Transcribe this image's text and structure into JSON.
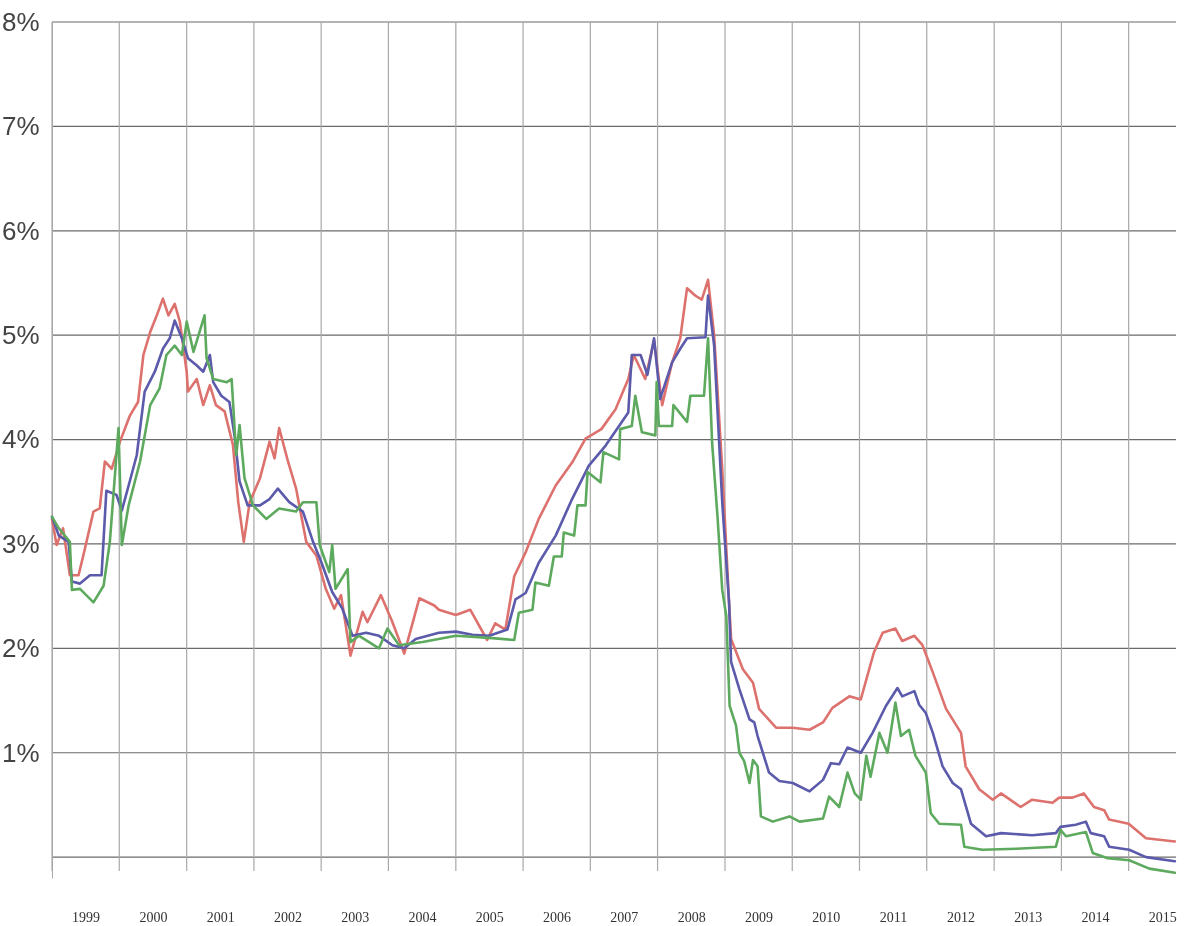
{
  "chart_data": {
    "type": "line",
    "xlim": [
      "1999-01-01",
      "2015-09-15"
    ],
    "ylim": [
      -0.2,
      8
    ],
    "xticks": [
      {
        "value": "1999-01-01",
        "label": null
      },
      {
        "value": "1999-07-02",
        "label": "1999"
      },
      {
        "value": "2000-01-01",
        "label": null
      },
      {
        "value": "2000-07-02",
        "label": "2000"
      },
      {
        "value": "2001-01-01",
        "label": null
      },
      {
        "value": "2001-07-02",
        "label": "2001"
      },
      {
        "value": "2002-01-01",
        "label": null
      },
      {
        "value": "2002-07-02",
        "label": "2002"
      },
      {
        "value": "2003-01-01",
        "label": null
      },
      {
        "value": "2003-07-02",
        "label": "2003"
      },
      {
        "value": "2004-01-01",
        "label": null
      },
      {
        "value": "2004-07-02",
        "label": "2004"
      },
      {
        "value": "2005-01-01",
        "label": null
      },
      {
        "value": "2005-07-02",
        "label": "2005"
      },
      {
        "value": "2006-01-01",
        "label": null
      },
      {
        "value": "2006-07-02",
        "label": "2006"
      },
      {
        "value": "2007-01-01",
        "label": null
      },
      {
        "value": "2007-07-02",
        "label": "2007"
      },
      {
        "value": "2008-01-01",
        "label": null
      },
      {
        "value": "2008-07-02",
        "label": "2008"
      },
      {
        "value": "2009-01-01",
        "label": null
      },
      {
        "value": "2009-07-02",
        "label": "2009"
      },
      {
        "value": "2010-01-01",
        "label": null
      },
      {
        "value": "2010-07-02",
        "label": "2010"
      },
      {
        "value": "2011-01-01",
        "label": null
      },
      {
        "value": "2011-07-02",
        "label": "2011"
      },
      {
        "value": "2012-01-01",
        "label": null
      },
      {
        "value": "2012-07-02",
        "label": "2012"
      },
      {
        "value": "2013-01-01",
        "label": null
      },
      {
        "value": "2013-07-02",
        "label": "2013"
      },
      {
        "value": "2014-01-01",
        "label": null
      },
      {
        "value": "2014-07-02",
        "label": "2014"
      },
      {
        "value": "2015-01-01",
        "label": null
      },
      {
        "value": "2015-07-02",
        "label": "2015"
      }
    ],
    "yticks": [
      {
        "value": 0,
        "label": null
      },
      {
        "value": 1,
        "label": "1%"
      },
      {
        "value": 2,
        "label": "2%"
      },
      {
        "value": 3,
        "label": "3%"
      },
      {
        "value": 4,
        "label": "4%"
      },
      {
        "value": 5,
        "label": "5%"
      },
      {
        "value": 6,
        "label": "6%"
      },
      {
        "value": 7,
        "label": "7%"
      },
      {
        "value": 8,
        "label": "8%"
      }
    ],
    "grid": true,
    "series": [
      {
        "color": "#dd716d",
        "x": [
          "1999-01-01",
          "1999-01-26",
          "1999-03-02",
          "1999-04-08",
          "1999-05-25",
          "1999-06-20",
          "1999-08-14",
          "1999-09-17",
          "1999-10-15",
          "1999-11-21",
          "2000-01-05",
          "2000-02-28",
          "2000-04-12",
          "2000-05-11",
          "2000-06-17",
          "2000-07-23",
          "2000-08-25",
          "2000-09-24",
          "2000-10-28",
          "2000-11-25",
          "2001-01-01",
          "2001-01-08",
          "2001-02-25",
          "2001-04-01",
          "2001-05-07",
          "2001-06-09",
          "2001-07-26",
          "2001-09-09",
          "2001-10-08",
          "2001-11-07",
          "2001-12-09",
          "2002-02-03",
          "2002-03-27",
          "2002-04-23",
          "2002-05-18",
          "2002-07-05",
          "2002-08-18",
          "2002-10-12",
          "2002-12-06",
          "2003-01-26",
          "2003-03-13",
          "2003-04-19",
          "2003-06-09",
          "2003-08-14",
          "2003-09-09",
          "2003-11-21",
          "2004-01-23",
          "2004-03-27",
          "2004-06-17",
          "2004-09-06",
          "2004-10-01",
          "2005-01-01",
          "2005-03-20",
          "2005-06-20",
          "2005-08-03",
          "2005-09-27",
          "2005-11-14",
          "2006-01-15",
          "2006-03-27",
          "2006-06-27",
          "2006-09-24",
          "2006-12-06",
          "2007-03-02",
          "2007-05-18",
          "2007-07-26",
          "2007-08-25",
          "2007-10-26",
          "2007-12-13",
          "2008-01-26",
          "2008-03-20",
          "2008-05-03",
          "2008-06-09",
          "2008-07-23",
          "2008-08-28",
          "2008-10-01",
          "2008-11-03",
          "2008-12-17",
          "2009-01-23",
          "2009-02-03",
          "2009-04-08",
          "2009-06-02",
          "2009-07-05",
          "2009-10-05",
          "2010-01-04",
          "2010-04-05",
          "2010-06-17",
          "2010-08-07",
          "2010-11-07",
          "2011-01-08",
          "2011-03-20",
          "2011-05-07",
          "2011-07-15",
          "2011-08-21",
          "2011-10-26",
          "2011-12-09",
          "2012-02-03",
          "2012-04-15",
          "2012-07-05",
          "2012-07-30",
          "2012-10-12",
          "2012-12-24",
          "2013-02-07",
          "2013-05-25",
          "2013-07-26",
          "2013-11-14",
          "2013-12-20",
          "2014-03-02",
          "2014-05-03",
          "2014-06-27",
          "2014-08-21",
          "2014-09-17",
          "2015-01-01",
          "2015-04-05",
          "2015-09-09"
        ],
        "values": [
          3.24,
          2.99,
          3.15,
          2.7,
          2.7,
          2.89,
          3.31,
          3.34,
          3.79,
          3.72,
          3.98,
          4.23,
          4.36,
          4.81,
          5.03,
          5.19,
          5.35,
          5.19,
          5.3,
          5.13,
          4.65,
          4.46,
          4.58,
          4.33,
          4.52,
          4.33,
          4.27,
          3.95,
          3.4,
          3.02,
          3.4,
          3.63,
          3.98,
          3.82,
          4.11,
          3.79,
          3.53,
          3.02,
          2.89,
          2.57,
          2.38,
          2.51,
          1.93,
          2.35,
          2.25,
          2.51,
          2.25,
          1.95,
          2.48,
          2.41,
          2.37,
          2.32,
          2.37,
          2.08,
          2.24,
          2.18,
          2.69,
          2.92,
          3.24,
          3.56,
          3.78,
          4.01,
          4.1,
          4.29,
          4.58,
          4.81,
          4.58,
          4.95,
          4.33,
          4.74,
          4.97,
          5.45,
          5.38,
          5.34,
          5.53,
          5.0,
          3.72,
          2.44,
          2.09,
          1.8,
          1.67,
          1.42,
          1.24,
          1.24,
          1.22,
          1.29,
          1.43,
          1.54,
          1.51,
          1.96,
          2.15,
          2.19,
          2.07,
          2.12,
          2.03,
          1.77,
          1.42,
          1.19,
          0.87,
          0.65,
          0.55,
          0.61,
          0.48,
          0.55,
          0.52,
          0.57,
          0.57,
          0.61,
          0.48,
          0.45,
          0.36,
          0.32,
          0.18,
          0.15
        ]
      },
      {
        "color": "#5b5aab",
        "x": [
          "1999-01-01",
          "1999-02-07",
          "1999-04-01",
          "1999-04-19",
          "1999-06-02",
          "1999-07-26",
          "1999-09-27",
          "1999-10-23",
          "1999-12-17",
          "2000-01-15",
          "2000-02-21",
          "2000-04-05",
          "2000-05-18",
          "2000-07-12",
          "2000-08-25",
          "2000-10-01",
          "2000-10-28",
          "2000-12-06",
          "2001-01-08",
          "2001-02-25",
          "2001-04-01",
          "2001-05-07",
          "2001-05-25",
          "2001-07-08",
          "2001-08-21",
          "2001-09-20",
          "2001-10-15",
          "2001-11-28",
          "2002-02-03",
          "2002-03-27",
          "2002-05-11",
          "2002-07-12",
          "2002-09-24",
          "2002-11-18",
          "2003-01-01",
          "2003-03-02",
          "2003-04-26",
          "2003-06-20",
          "2003-09-02",
          "2003-11-11",
          "2004-01-23",
          "2004-03-27",
          "2004-05-28",
          "2004-10-01",
          "2005-01-01",
          "2005-04-01",
          "2005-07-01",
          "2005-10-08",
          "2005-11-21",
          "2006-01-15",
          "2006-03-27",
          "2006-06-27",
          "2006-09-24",
          "2006-12-24",
          "2007-03-24",
          "2007-06-06",
          "2007-07-26",
          "2007-08-14",
          "2007-10-01",
          "2007-11-07",
          "2007-12-13",
          "2008-01-15",
          "2008-03-20",
          "2008-05-03",
          "2008-06-09",
          "2008-09-17",
          "2008-10-01",
          "2008-11-03",
          "2008-12-17",
          "2009-01-23",
          "2009-02-03",
          "2009-03-20",
          "2009-05-14",
          "2009-06-09",
          "2009-06-27",
          "2009-08-28",
          "2009-10-23",
          "2010-01-04",
          "2010-04-05",
          "2010-06-17",
          "2010-07-30",
          "2010-09-13",
          "2010-10-28",
          "2011-01-08",
          "2011-03-13",
          "2011-05-25",
          "2011-07-26",
          "2011-08-21",
          "2011-10-26",
          "2011-11-21",
          "2011-12-27",
          "2012-02-03",
          "2012-03-27",
          "2012-05-21",
          "2012-07-05",
          "2012-08-28",
          "2012-11-18",
          "2013-02-07",
          "2013-07-26",
          "2013-12-02",
          "2013-12-27",
          "2014-03-20",
          "2014-05-14",
          "2014-06-09",
          "2014-08-21",
          "2014-09-17",
          "2015-01-04",
          "2015-04-05",
          "2015-09-09"
        ],
        "values": [
          3.26,
          3.08,
          3.02,
          2.64,
          2.62,
          2.7,
          2.7,
          3.51,
          3.47,
          3.32,
          3.56,
          3.85,
          4.46,
          4.65,
          4.87,
          4.97,
          5.14,
          4.97,
          4.78,
          4.71,
          4.65,
          4.81,
          4.55,
          4.42,
          4.36,
          4.01,
          3.6,
          3.37,
          3.37,
          3.43,
          3.53,
          3.4,
          3.31,
          3.02,
          2.83,
          2.54,
          2.38,
          2.12,
          2.15,
          2.12,
          2.03,
          2.0,
          2.09,
          2.15,
          2.16,
          2.13,
          2.12,
          2.18,
          2.47,
          2.53,
          2.82,
          3.08,
          3.43,
          3.75,
          3.94,
          4.13,
          4.26,
          4.81,
          4.81,
          4.62,
          4.97,
          4.39,
          4.74,
          4.87,
          4.97,
          4.98,
          5.38,
          4.9,
          3.4,
          2.44,
          1.87,
          1.61,
          1.32,
          1.29,
          1.16,
          0.81,
          0.73,
          0.71,
          0.63,
          0.74,
          0.9,
          0.89,
          1.05,
          1.0,
          1.19,
          1.45,
          1.62,
          1.54,
          1.59,
          1.46,
          1.38,
          1.19,
          0.87,
          0.71,
          0.65,
          0.32,
          0.2,
          0.23,
          0.21,
          0.23,
          0.29,
          0.31,
          0.34,
          0.23,
          0.2,
          0.1,
          0.07,
          0.0,
          -0.04
        ]
      },
      {
        "color": "#5daa5e",
        "x": [
          "1999-01-01",
          "1999-02-07",
          "1999-04-08",
          "1999-04-19",
          "1999-06-02",
          "1999-08-14",
          "1999-10-08",
          "1999-11-11",
          "1999-12-28",
          "2000-01-15",
          "2000-02-21",
          "2000-04-23",
          "2000-06-17",
          "2000-08-07",
          "2000-09-13",
          "2000-10-28",
          "2000-12-06",
          "2001-01-01",
          "2001-02-07",
          "2001-04-08",
          "2001-04-19",
          "2001-05-25",
          "2001-08-07",
          "2001-09-02",
          "2001-09-27",
          "2001-10-15",
          "2001-11-11",
          "2001-12-27",
          "2002-03-09",
          "2002-05-18",
          "2002-08-18",
          "2002-09-24",
          "2002-12-06",
          "2002-12-24",
          "2003-02-14",
          "2003-03-02",
          "2003-03-20",
          "2003-05-25",
          "2003-06-09",
          "2003-07-26",
          "2003-11-11",
          "2003-12-27",
          "2004-02-28",
          "2004-07-05",
          "2005-01-01",
          "2005-07-01",
          "2005-11-14",
          "2005-12-09",
          "2006-02-21",
          "2006-03-09",
          "2006-05-21",
          "2006-06-17",
          "2006-07-30",
          "2006-08-10",
          "2006-10-05",
          "2006-10-23",
          "2006-12-06",
          "2006-12-17",
          "2007-02-25",
          "2007-03-13",
          "2007-06-06",
          "2007-06-12",
          "2007-08-14",
          "2007-09-02",
          "2007-10-08",
          "2007-12-20",
          "2007-12-27",
          "2008-01-08",
          "2008-03-20",
          "2008-03-27",
          "2008-06-09",
          "2008-06-27",
          "2008-09-09",
          "2008-10-01",
          "2008-10-23",
          "2008-11-21",
          "2008-12-17",
          "2009-01-08",
          "2009-01-26",
          "2009-03-02",
          "2009-03-20",
          "2009-04-15",
          "2009-05-14",
          "2009-06-02",
          "2009-06-27",
          "2009-07-15",
          "2009-09-17",
          "2009-12-17",
          "2010-02-10",
          "2010-06-17",
          "2010-07-20",
          "2010-09-13",
          "2010-10-28",
          "2010-12-06",
          "2011-01-08",
          "2011-02-07",
          "2011-03-02",
          "2011-04-19",
          "2011-06-02",
          "2011-07-15",
          "2011-08-14",
          "2011-09-27",
          "2011-11-01",
          "2011-12-27",
          "2012-01-23",
          "2012-03-09",
          "2012-07-05",
          "2012-07-23",
          "2012-10-28",
          "2013-05-01",
          "2013-12-02",
          "2013-12-27",
          "2014-01-26",
          "2014-05-14",
          "2014-06-20",
          "2014-09-09",
          "2015-01-04",
          "2015-04-23",
          "2015-09-09"
        ],
        "values": [
          3.26,
          3.15,
          3.02,
          2.56,
          2.57,
          2.44,
          2.6,
          3.02,
          4.11,
          2.99,
          3.37,
          3.79,
          4.33,
          4.49,
          4.81,
          4.9,
          4.81,
          5.13,
          4.84,
          5.19,
          4.78,
          4.58,
          4.55,
          4.58,
          3.85,
          4.14,
          3.63,
          3.37,
          3.24,
          3.34,
          3.31,
          3.4,
          3.4,
          2.99,
          2.73,
          2.99,
          2.57,
          2.76,
          2.06,
          2.12,
          2.0,
          2.19,
          2.03,
          2.06,
          2.12,
          2.1,
          2.08,
          2.34,
          2.37,
          2.63,
          2.6,
          2.88,
          2.88,
          3.11,
          3.08,
          3.37,
          3.37,
          3.69,
          3.59,
          3.88,
          3.81,
          4.1,
          4.13,
          4.42,
          4.07,
          4.04,
          4.55,
          4.13,
          4.13,
          4.33,
          4.17,
          4.42,
          4.42,
          4.97,
          3.97,
          3.27,
          2.56,
          2.31,
          1.45,
          1.26,
          1.0,
          0.92,
          0.71,
          0.93,
          0.87,
          0.39,
          0.34,
          0.39,
          0.34,
          0.37,
          0.58,
          0.48,
          0.81,
          0.61,
          0.55,
          0.97,
          0.77,
          1.19,
          1.0,
          1.48,
          1.16,
          1.22,
          0.97,
          0.81,
          0.42,
          0.32,
          0.31,
          0.1,
          0.07,
          0.08,
          0.1,
          0.26,
          0.2,
          0.24,
          0.04,
          -0.01,
          -0.03,
          -0.11,
          -0.15
        ]
      }
    ]
  }
}
